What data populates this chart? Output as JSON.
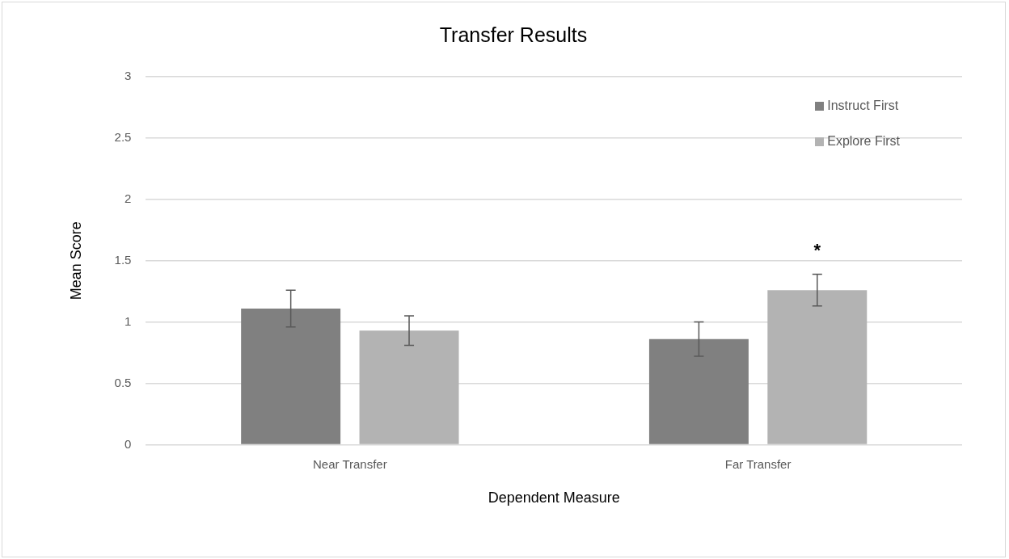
{
  "chart_data": {
    "type": "bar",
    "title": "Transfer Results",
    "xlabel": "Dependent Measure",
    "ylabel": "Mean Score",
    "categories": [
      "Near Transfer",
      "Far Transfer"
    ],
    "series": [
      {
        "name": "Instruct First",
        "color": "#808080",
        "values": [
          1.11,
          0.86
        ],
        "errors": [
          0.15,
          0.14
        ]
      },
      {
        "name": "Explore First",
        "color": "#b3b3b3",
        "values": [
          0.93,
          1.26
        ],
        "errors": [
          0.12,
          0.13
        ]
      }
    ],
    "ylim": [
      0,
      3
    ],
    "yticks": [
      0,
      0.5,
      1,
      1.5,
      2,
      2.5,
      3
    ],
    "grid": "y",
    "legend": "top right",
    "annotations": [
      "*"
    ]
  }
}
